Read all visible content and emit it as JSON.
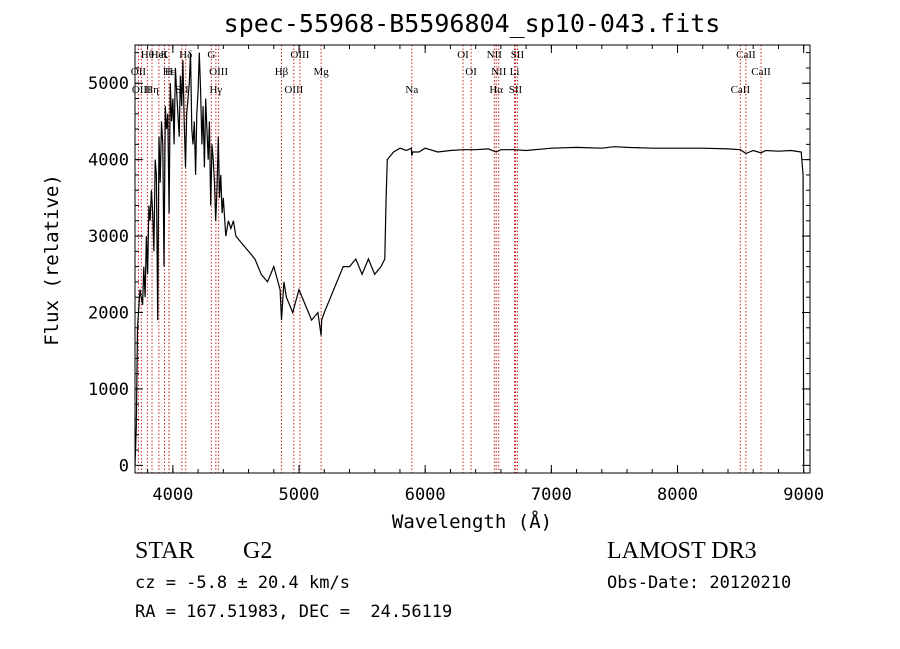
{
  "chart_data": {
    "type": "line",
    "title": "spec-55968-B5596804_sp10-043.fits",
    "xlabel": "Wavelength (Å)",
    "ylabel": "Flux (relative)",
    "xlim": [
      3700,
      9050
    ],
    "ylim": [
      -100,
      5500
    ],
    "x_ticks": [
      4000,
      5000,
      6000,
      7000,
      8000,
      9000
    ],
    "y_ticks": [
      0,
      1000,
      2000,
      3000,
      4000,
      5000
    ],
    "series": [
      {
        "x": [
          3700,
          3710,
          3720,
          3740,
          3760,
          3770,
          3780,
          3790,
          3800,
          3810,
          3820,
          3830,
          3840,
          3850,
          3860,
          3870,
          3880,
          3890,
          3900,
          3910,
          3920,
          3930,
          3940,
          3950,
          3960,
          3970,
          3980,
          3990,
          4000,
          4010,
          4020,
          4030,
          4040,
          4050,
          4060,
          4070,
          4080,
          4090,
          4100,
          4110,
          4120,
          4130,
          4140,
          4150,
          4160,
          4170,
          4180,
          4190,
          4200,
          4210,
          4220,
          4230,
          4240,
          4250,
          4260,
          4270,
          4280,
          4290,
          4300,
          4310,
          4320,
          4330,
          4340,
          4350,
          4360,
          4370,
          4380,
          4390,
          4400,
          4420,
          4440,
          4460,
          4480,
          4500,
          4550,
          4600,
          4650,
          4700,
          4750,
          4800,
          4850,
          4861,
          4880,
          4900,
          4950,
          5000,
          5050,
          5100,
          5150,
          5175,
          5180,
          5200,
          5250,
          5300,
          5350,
          5400,
          5450,
          5500,
          5550,
          5600,
          5650,
          5680,
          5690,
          5700,
          5750,
          5800,
          5850,
          5890,
          5895,
          5900,
          5950,
          6000,
          6100,
          6200,
          6300,
          6400,
          6500,
          6563,
          6600,
          6700,
          6800,
          7000,
          7200,
          7400,
          7500,
          7600,
          7800,
          8000,
          8200,
          8400,
          8498,
          8542,
          8600,
          8662,
          8700,
          8800,
          8900,
          8980,
          8995,
          9000
        ],
        "y": [
          0,
          500,
          1800,
          2300,
          2100,
          2600,
          2200,
          3000,
          2500,
          3400,
          3200,
          3600,
          3300,
          2800,
          4000,
          3800,
          1900,
          4300,
          3700,
          4500,
          4200,
          2600,
          4700,
          4400,
          4600,
          3300,
          5000,
          4500,
          4800,
          4200,
          5200,
          4900,
          4600,
          4300,
          5100,
          4700,
          5300,
          4500,
          3900,
          4600,
          4800,
          5000,
          5400,
          4400,
          4200,
          4500,
          3800,
          4600,
          4900,
          5400,
          4900,
          4200,
          4700,
          3900,
          4800,
          4400,
          4000,
          4500,
          3400,
          4200,
          4000,
          3700,
          3200,
          3600,
          4300,
          3500,
          3800,
          3300,
          3500,
          3000,
          3200,
          3100,
          3200,
          3000,
          2900,
          2800,
          2700,
          2500,
          2400,
          2600,
          2300,
          1900,
          2400,
          2200,
          2000,
          2300,
          2100,
          1900,
          2000,
          1700,
          1900,
          2000,
          2200,
          2400,
          2600,
          2600,
          2700,
          2500,
          2700,
          2500,
          2600,
          2700,
          3500,
          4000,
          4100,
          4150,
          4120,
          4150,
          4050,
          4100,
          4100,
          4150,
          4100,
          4120,
          4130,
          4130,
          4140,
          4100,
          4130,
          4130,
          4120,
          4150,
          4160,
          4150,
          4170,
          4160,
          4150,
          4150,
          4150,
          4140,
          4130,
          4080,
          4120,
          4090,
          4120,
          4110,
          4120,
          4100,
          3800,
          0
        ]
      }
    ],
    "lines": [
      {
        "name": "Hθ",
        "x": 3798
      },
      {
        "name": "OII",
        "x": 3727
      },
      {
        "name": "OIII",
        "x": 3750
      },
      {
        "name": "K",
        "x": 3934
      },
      {
        "name": "H",
        "x": 3969
      },
      {
        "name": "Hη",
        "x": 3835
      },
      {
        "name": "HeI",
        "x": 3889
      },
      {
        "name": "Hε",
        "x": 3970
      },
      {
        "name": "SII",
        "x": 4072
      },
      {
        "name": "Hδ",
        "x": 4102
      },
      {
        "name": "OIII",
        "x": 4363
      },
      {
        "name": "Hγ",
        "x": 4341
      },
      {
        "name": "G",
        "x": 4305
      },
      {
        "name": "Hβ",
        "x": 4861
      },
      {
        "name": "OIII",
        "x": 4959
      },
      {
        "name": "OIII",
        "x": 5007
      },
      {
        "name": "Mg",
        "x": 5175
      },
      {
        "name": "Na",
        "x": 5894
      },
      {
        "name": "OI",
        "x": 6300
      },
      {
        "name": "OI",
        "x": 6364
      },
      {
        "name": "Hα",
        "x": 6563
      },
      {
        "name": "NII",
        "x": 6548
      },
      {
        "name": "NII",
        "x": 6583
      },
      {
        "name": "SII",
        "x": 6716
      },
      {
        "name": "SII",
        "x": 6731
      },
      {
        "name": "Li",
        "x": 6708
      },
      {
        "name": "CaII",
        "x": 8498
      },
      {
        "name": "CaII",
        "x": 8542
      },
      {
        "name": "CaII",
        "x": 8662
      }
    ]
  },
  "info": {
    "object_type": "STAR",
    "subclass": "G2",
    "redshift": "cz = -5.8 ± 20.4 km/s",
    "coords": "RA = 167.51983, DEC =  24.56119",
    "survey": "LAMOST DR3",
    "obs_date": "Obs-Date: 20120210"
  }
}
